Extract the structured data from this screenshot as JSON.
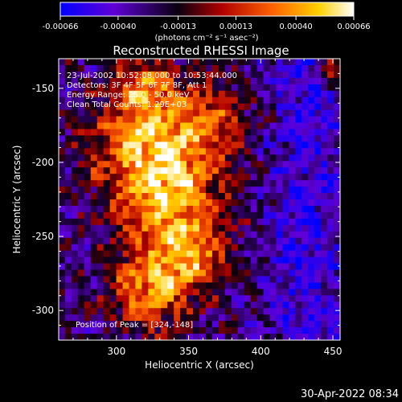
{
  "chart_data": {
    "type": "heatmap",
    "title": "Reconstructed RHESSI Image",
    "xlabel": "Heliocentric X (arcsec)",
    "ylabel": "Heliocentric Y (arcsec)",
    "xlim": [
      260,
      455
    ],
    "ylim": [
      -320,
      -130
    ],
    "x_ticks": [
      300,
      350,
      400,
      450
    ],
    "y_ticks": [
      -150,
      -200,
      -250,
      -300
    ],
    "colorbar": {
      "ticks": [
        "-0.00066",
        "-0.00040",
        "-0.00013",
        "0.00013",
        "0.00040",
        "0.00066"
      ],
      "values": [
        -0.00066,
        -0.0004,
        -0.00013,
        0.00013,
        0.0004,
        0.00066
      ],
      "units": "(photons cm⁻² s⁻¹ asec⁻²)",
      "colors": [
        "#0000ff",
        "#7a00c8",
        "#000000",
        "#c00000",
        "#ff7000",
        "#ffff80",
        "#ffffff"
      ]
    },
    "annotations": [
      "23-Jul-2002 10:52:08.000 to 10:53:44.000",
      "Detectors: 3F 4F 5F 6F 7F 8F, Att 1",
      "Energy Range: 25.0 - 50.0 keV",
      "Clean     Total Counts: 1.29E+03"
    ],
    "peak_label": "Position of Peak = [324,-148]",
    "peak": [
      324,
      -148
    ]
  },
  "footer": {
    "date_stamp": "30-Apr-2022 08:34"
  }
}
